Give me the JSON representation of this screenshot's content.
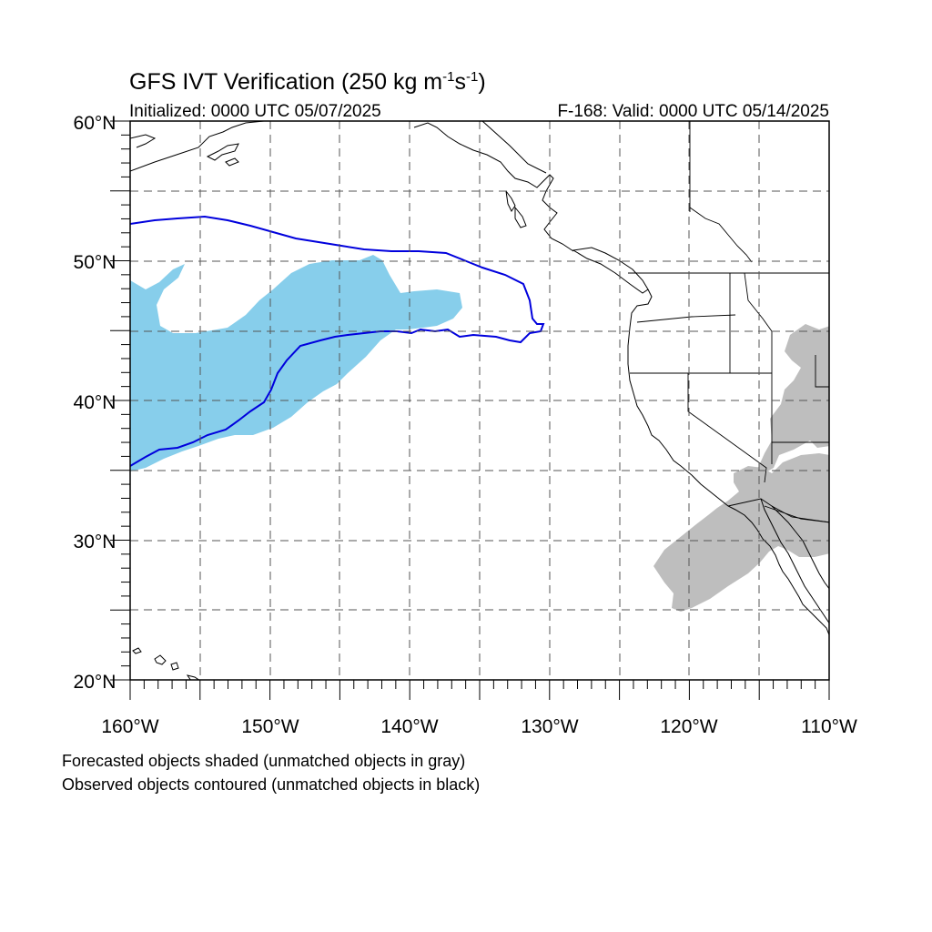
{
  "map": {
    "title_main": "GFS IVT Verification (250 kg m",
    "title_sup1": "-1",
    "title_mid": "s",
    "title_sup2": "-1",
    "title_end": ")",
    "initialized": "Initialized: 0000 UTC 05/07/2025",
    "valid": "F-168: Valid: 0000 UTC 05/14/2025",
    "lat_labels": [
      "60°N",
      "50°N",
      "40°N",
      "30°N",
      "20°N"
    ],
    "lon_labels": [
      "160°W",
      "150°W",
      "140°W",
      "130°W",
      "120°W",
      "110°W"
    ],
    "footnote_1": "Forecasted objects shaded (unmatched objects in gray)",
    "footnote_2": "Observed objects contoured (unmatched objects in black)",
    "lat_range": [
      20,
      60
    ],
    "lon_range": [
      -160,
      -110
    ],
    "colors": {
      "forecast_matched": "#87ceeb",
      "forecast_unmatched": "#bebebe",
      "observed_matched": "#0000dd"
    }
  }
}
